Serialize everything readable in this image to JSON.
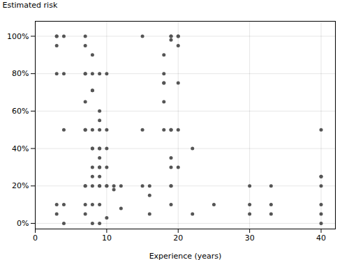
{
  "chart_data": {
    "type": "scatter",
    "xlabel": "Experience (years)",
    "ylabel": "Estimated risk",
    "x": [
      3,
      3,
      3,
      3,
      3,
      3,
      4,
      4,
      4,
      4,
      4,
      7,
      7,
      7,
      7,
      7,
      7,
      7,
      7,
      7,
      7,
      7,
      8,
      8,
      8,
      8,
      8,
      8,
      8,
      8,
      8,
      8,
      8,
      8,
      9,
      9,
      9,
      9,
      9,
      9,
      9,
      9,
      9,
      9,
      9,
      9,
      9,
      9,
      10,
      10,
      10,
      10,
      10,
      10,
      10,
      11,
      11,
      12,
      12,
      15,
      15,
      15,
      16,
      16,
      16,
      18,
      18,
      18,
      18,
      18,
      18,
      19,
      19,
      19,
      19,
      19,
      19,
      19,
      19,
      19,
      19,
      20,
      20,
      20,
      20,
      20,
      20,
      22,
      22,
      25,
      30,
      30,
      30,
      33,
      33,
      33,
      40,
      40,
      40,
      40,
      40,
      40,
      40
    ],
    "values": [
      100,
      100,
      95,
      80,
      10,
      5,
      100,
      80,
      50,
      10,
      0,
      100,
      95,
      80,
      80,
      65,
      50,
      50,
      20,
      20,
      10,
      5,
      90,
      80,
      71,
      71,
      50,
      40,
      40,
      30,
      25,
      20,
      10,
      0,
      80,
      60,
      55,
      50,
      40,
      40,
      35,
      30,
      30,
      25,
      20,
      20,
      10,
      0,
      80,
      50,
      40,
      30,
      20,
      20,
      3,
      20,
      18,
      20,
      8,
      100,
      50,
      20,
      20,
      15,
      5,
      90,
      80,
      75,
      75,
      65,
      50,
      100,
      100,
      98,
      50,
      50,
      35,
      30,
      20,
      20,
      10,
      100,
      100,
      95,
      75,
      50,
      30,
      40,
      5,
      10,
      5,
      10,
      20,
      20,
      10,
      5,
      50,
      25,
      25,
      20,
      10,
      5,
      0
    ],
    "color": "#555555",
    "xlim": [
      0,
      42
    ],
    "ylim": [
      -3,
      108
    ],
    "xticks": [
      0,
      10,
      20,
      30,
      40
    ],
    "yticks": [
      {
        "value": 0,
        "label": "0%"
      },
      {
        "value": 20,
        "label": "20%"
      },
      {
        "value": 40,
        "label": "40%"
      },
      {
        "value": 60,
        "label": "60%"
      },
      {
        "value": 80,
        "label": "80%"
      },
      {
        "value": 100,
        "label": "100%"
      }
    ],
    "grid": true
  }
}
